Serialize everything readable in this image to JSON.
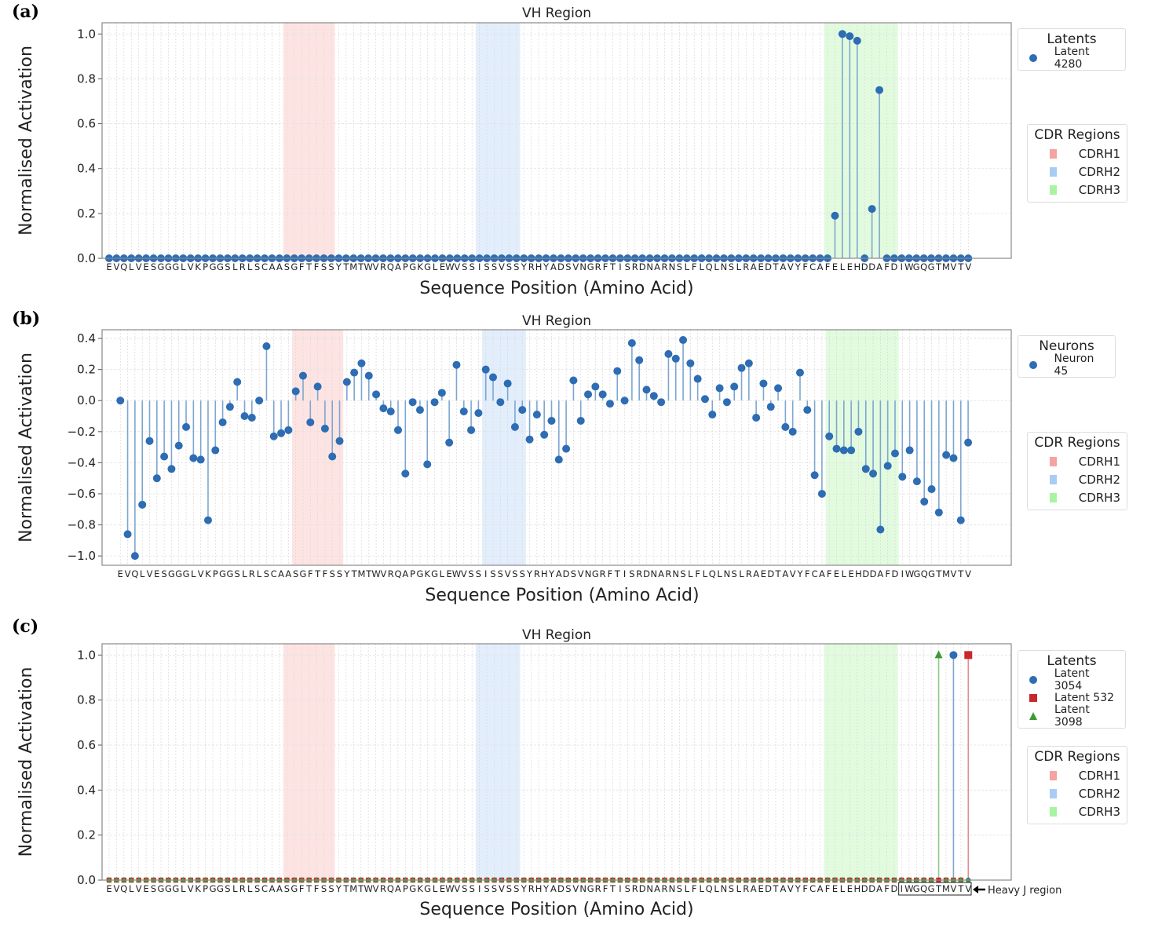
{
  "chart_data": [
    {
      "type": "stem",
      "panel_label": "(a)",
      "title": "VH Region",
      "xlabel": "Sequence Position (Amino Acid)",
      "ylabel": "Normalised Activation",
      "grid": true,
      "categories": [
        "E",
        "V",
        "Q",
        "L",
        "V",
        "E",
        "S",
        "G",
        "G",
        "G",
        "L",
        "V",
        "K",
        "P",
        "G",
        "G",
        "S",
        "L",
        "R",
        "L",
        "S",
        "C",
        "A",
        "A",
        "S",
        "G",
        "F",
        "T",
        "F",
        "S",
        "S",
        "Y",
        "T",
        "M",
        "T",
        "W",
        "V",
        "R",
        "Q",
        "A",
        "P",
        "G",
        "K",
        "G",
        "L",
        "E",
        "W",
        "V",
        "S",
        "S",
        "I",
        "S",
        "S",
        "V",
        "S",
        "S",
        "Y",
        "R",
        "H",
        "Y",
        "A",
        "D",
        "S",
        "V",
        "N",
        "G",
        "R",
        "F",
        "T",
        "I",
        "S",
        "R",
        "D",
        "N",
        "A",
        "R",
        "N",
        "S",
        "L",
        "F",
        "L",
        "Q",
        "L",
        "N",
        "S",
        "L",
        "R",
        "A",
        "E",
        "D",
        "T",
        "A",
        "V",
        "Y",
        "F",
        "C",
        "A",
        "F",
        "E",
        "L",
        "E",
        "H",
        "D",
        "D",
        "A",
        "F",
        "D",
        "I",
        "W",
        "G",
        "Q",
        "G",
        "T",
        "M",
        "V",
        "T",
        "V"
      ],
      "xlim": [
        -0.95,
        121.8
      ],
      "ylim": [
        0,
        1.05
      ],
      "yticks": [
        0,
        0.2,
        0.4,
        0.6,
        0.8,
        1.0
      ],
      "ytick_labels": [
        "0.0",
        "0.2",
        "0.4",
        "0.6",
        "0.8",
        "1.0"
      ],
      "legend_title": "Latents",
      "legend_placement": "right",
      "series": [
        {
          "name": "Latent 4280",
          "color": "#2e6db4",
          "stem_color": "#7ea6d0",
          "marker": "circle",
          "values": [
            0,
            0,
            0,
            0,
            0,
            0,
            0,
            0,
            0,
            0,
            0,
            0,
            0,
            0,
            0,
            0,
            0,
            0,
            0,
            0,
            0,
            0,
            0,
            0,
            0,
            0,
            0,
            0,
            0,
            0,
            0,
            0,
            0,
            0,
            0,
            0,
            0,
            0,
            0,
            0,
            0,
            0,
            0,
            0,
            0,
            0,
            0,
            0,
            0,
            0,
            0,
            0,
            0,
            0,
            0,
            0,
            0,
            0,
            0,
            0,
            0,
            0,
            0,
            0,
            0,
            0,
            0,
            0,
            0,
            0,
            0,
            0,
            0,
            0,
            0,
            0,
            0,
            0,
            0,
            0,
            0,
            0,
            0,
            0,
            0,
            0,
            0,
            0,
            0,
            0,
            0,
            0,
            0,
            0,
            0,
            0,
            0,
            0,
            0.19,
            1.0,
            0.99,
            0.97,
            0.0,
            0.22,
            0.75,
            0,
            0,
            0,
            0,
            0,
            0,
            0,
            0,
            0,
            0,
            0,
            0
          ]
        }
      ],
      "cdr_legend_title": "CDR Regions",
      "cdr_regions": [
        {
          "name": "CDRH1",
          "start": 24,
          "end": 30,
          "color": "#f4a3a0",
          "fill": "#fde4e3"
        },
        {
          "name": "CDRH2",
          "start": 50,
          "end": 55,
          "color": "#a8ccf4",
          "fill": "#e3eefc"
        },
        {
          "name": "CDRH3",
          "start": 97,
          "end": 106,
          "color": "#a8f4a0",
          "fill": "#e2fbdf"
        }
      ]
    },
    {
      "type": "stem",
      "panel_label": "(b)",
      "title": "VH Region",
      "xlabel": "Sequence Position (Amino Acid)",
      "ylabel": "Normalised Activation",
      "grid": true,
      "categories": [
        "E",
        "V",
        "Q",
        "L",
        "V",
        "E",
        "S",
        "G",
        "G",
        "G",
        "L",
        "V",
        "K",
        "P",
        "G",
        "G",
        "S",
        "L",
        "R",
        "L",
        "S",
        "C",
        "A",
        "A",
        "S",
        "G",
        "F",
        "T",
        "F",
        "S",
        "S",
        "Y",
        "T",
        "M",
        "T",
        "W",
        "V",
        "R",
        "Q",
        "A",
        "P",
        "G",
        "K",
        "G",
        "L",
        "E",
        "W",
        "V",
        "S",
        "S",
        "I",
        "S",
        "S",
        "V",
        "S",
        "S",
        "Y",
        "R",
        "H",
        "Y",
        "A",
        "D",
        "S",
        "V",
        "N",
        "G",
        "R",
        "F",
        "T",
        "I",
        "S",
        "R",
        "D",
        "N",
        "A",
        "R",
        "N",
        "S",
        "L",
        "F",
        "L",
        "Q",
        "L",
        "N",
        "S",
        "L",
        "R",
        "A",
        "E",
        "D",
        "T",
        "A",
        "V",
        "Y",
        "F",
        "C",
        "A",
        "F",
        "E",
        "L",
        "E",
        "H",
        "D",
        "D",
        "A",
        "F",
        "D",
        "I",
        "W",
        "G",
        "Q",
        "G",
        "T",
        "M",
        "V",
        "T",
        "V"
      ],
      "xlim": [
        -2.5,
        121.9
      ],
      "ylim": [
        -1.06,
        0.456
      ],
      "yticks": [
        -1.0,
        -0.8,
        -0.6,
        -0.4,
        -0.2,
        0.0,
        0.2,
        0.4
      ],
      "ytick_labels": [
        "−1.0",
        "−0.8",
        "−0.6",
        "−0.4",
        "−0.2",
        "0.0",
        "0.2",
        "0.4"
      ],
      "legend_title": "Neurons",
      "legend_placement": "right",
      "series": [
        {
          "name": "Neuron 45",
          "color": "#2e6db4",
          "stem_color": "#7ea6d0",
          "marker": "circle",
          "values": [
            0,
            -0.86,
            -1.0,
            -0.67,
            -0.26,
            -0.5,
            -0.36,
            -0.44,
            -0.29,
            -0.17,
            -0.37,
            -0.38,
            -0.77,
            -0.32,
            -0.14,
            -0.04,
            0.12,
            -0.1,
            -0.11,
            0.0,
            0.35,
            -0.23,
            -0.21,
            -0.19,
            0.06,
            0.16,
            -0.14,
            0.09,
            -0.18,
            -0.36,
            -0.26,
            0.12,
            0.18,
            0.24,
            0.16,
            0.04,
            -0.05,
            -0.07,
            -0.19,
            -0.47,
            -0.01,
            -0.06,
            -0.41,
            -0.01,
            0.05,
            -0.27,
            0.23,
            -0.07,
            -0.19,
            -0.08,
            0.2,
            0.15,
            -0.01,
            0.11,
            -0.17,
            -0.06,
            -0.25,
            -0.09,
            -0.22,
            -0.13,
            -0.38,
            -0.31,
            0.13,
            -0.13,
            0.04,
            0.09,
            0.04,
            -0.02,
            0.19,
            0.0,
            0.37,
            0.26,
            0.07,
            0.03,
            -0.01,
            0.3,
            0.27,
            0.39,
            0.24,
            0.14,
            0.01,
            -0.09,
            0.08,
            -0.01,
            0.09,
            0.21,
            0.24,
            -0.11,
            0.11,
            -0.04,
            0.08,
            -0.17,
            -0.2,
            0.18,
            -0.06,
            -0.48,
            -0.6,
            -0.23,
            -0.31,
            -0.32,
            -0.32,
            -0.2,
            -0.44,
            -0.47,
            -0.83,
            -0.42,
            -0.34,
            -0.49,
            -0.32,
            -0.52,
            -0.65,
            -0.57,
            -0.72,
            -0.35,
            -0.37,
            -0.77,
            -0.27
          ]
        }
      ],
      "cdr_legend_title": "CDR Regions",
      "cdr_regions": [
        {
          "name": "CDRH1",
          "start": 24,
          "end": 30,
          "color": "#f4a3a0",
          "fill": "#fde4e3"
        },
        {
          "name": "CDRH2",
          "start": 50,
          "end": 55,
          "color": "#a8ccf4",
          "fill": "#e3eefc"
        },
        {
          "name": "CDRH3",
          "start": 97,
          "end": 106,
          "color": "#a8f4a0",
          "fill": "#e2fbdf"
        }
      ]
    },
    {
      "type": "stem",
      "panel_label": "(c)",
      "title": "VH Region",
      "xlabel": "Sequence Position (Amino Acid)",
      "ylabel": "Normalised Activation",
      "grid": true,
      "categories": [
        "E",
        "V",
        "Q",
        "L",
        "V",
        "E",
        "S",
        "G",
        "G",
        "G",
        "L",
        "V",
        "K",
        "P",
        "G",
        "G",
        "S",
        "L",
        "R",
        "L",
        "S",
        "C",
        "A",
        "A",
        "S",
        "G",
        "F",
        "T",
        "F",
        "S",
        "S",
        "Y",
        "T",
        "M",
        "T",
        "W",
        "V",
        "R",
        "Q",
        "A",
        "P",
        "G",
        "K",
        "G",
        "L",
        "E",
        "W",
        "V",
        "S",
        "S",
        "I",
        "S",
        "S",
        "V",
        "S",
        "S",
        "Y",
        "R",
        "H",
        "Y",
        "A",
        "D",
        "S",
        "V",
        "N",
        "G",
        "R",
        "F",
        "T",
        "I",
        "S",
        "R",
        "D",
        "N",
        "A",
        "R",
        "N",
        "S",
        "L",
        "F",
        "L",
        "Q",
        "L",
        "N",
        "S",
        "L",
        "R",
        "A",
        "E",
        "D",
        "T",
        "A",
        "V",
        "Y",
        "F",
        "C",
        "A",
        "F",
        "E",
        "L",
        "E",
        "H",
        "D",
        "D",
        "A",
        "F",
        "D",
        "I",
        "W",
        "G",
        "Q",
        "G",
        "T",
        "M",
        "V",
        "T",
        "V"
      ],
      "xlim": [
        -0.95,
        121.8
      ],
      "ylim": [
        0,
        1.05
      ],
      "yticks": [
        0,
        0.2,
        0.4,
        0.6,
        0.8,
        1.0
      ],
      "ytick_labels": [
        "0.0",
        "0.2",
        "0.4",
        "0.6",
        "0.8",
        "1.0"
      ],
      "legend_title": "Latents",
      "legend_placement": "right",
      "series": [
        {
          "name": "Latent 3054",
          "color": "#2e6db4",
          "stem_color": "#7ea6d0",
          "marker": "circle",
          "values": [
            0,
            0,
            0,
            0,
            0,
            0,
            0,
            0,
            0,
            0,
            0,
            0,
            0,
            0,
            0,
            0,
            0,
            0,
            0,
            0,
            0,
            0,
            0,
            0,
            0,
            0,
            0,
            0,
            0,
            0,
            0,
            0,
            0,
            0,
            0,
            0,
            0,
            0,
            0,
            0,
            0,
            0,
            0,
            0,
            0,
            0,
            0,
            0,
            0,
            0,
            0,
            0,
            0,
            0,
            0,
            0,
            0,
            0,
            0,
            0,
            0,
            0,
            0,
            0,
            0,
            0,
            0,
            0,
            0,
            0,
            0,
            0,
            0,
            0,
            0,
            0,
            0,
            0,
            0,
            0,
            0,
            0,
            0,
            0,
            0,
            0,
            0,
            0,
            0,
            0,
            0,
            0,
            0,
            0,
            0,
            0,
            0,
            0,
            0,
            0,
            0,
            0,
            0,
            0,
            0,
            0,
            0,
            0,
            0,
            0,
            0,
            0,
            0,
            0,
            1.0,
            0,
            0
          ]
        },
        {
          "name": "Latent 532",
          "color": "#c8282a",
          "stem_color": "#e58a8a",
          "marker": "square",
          "values": [
            0,
            0,
            0,
            0,
            0,
            0,
            0,
            0,
            0,
            0,
            0,
            0,
            0,
            0,
            0,
            0,
            0,
            0,
            0,
            0,
            0,
            0,
            0,
            0,
            0,
            0,
            0,
            0,
            0,
            0,
            0,
            0,
            0,
            0,
            0,
            0,
            0,
            0,
            0,
            0,
            0,
            0,
            0,
            0,
            0,
            0,
            0,
            0,
            0,
            0,
            0,
            0,
            0,
            0,
            0,
            0,
            0,
            0,
            0,
            0,
            0,
            0,
            0,
            0,
            0,
            0,
            0,
            0,
            0,
            0,
            0,
            0,
            0,
            0,
            0,
            0,
            0,
            0,
            0,
            0,
            0,
            0,
            0,
            0,
            0,
            0,
            0,
            0,
            0,
            0,
            0,
            0,
            0,
            0,
            0,
            0,
            0,
            0,
            0,
            0,
            0,
            0,
            0,
            0,
            0,
            0,
            0,
            0,
            0,
            0,
            0,
            0,
            0,
            0,
            0,
            0,
            1.0
          ]
        },
        {
          "name": "Latent 3098",
          "color": "#3c9a35",
          "stem_color": "#8ccc85",
          "marker": "triangle",
          "values": [
            0,
            0,
            0,
            0,
            0,
            0,
            0,
            0,
            0,
            0,
            0,
            0,
            0,
            0,
            0,
            0,
            0,
            0,
            0,
            0,
            0,
            0,
            0,
            0,
            0,
            0,
            0,
            0,
            0,
            0,
            0,
            0,
            0,
            0,
            0,
            0,
            0,
            0,
            0,
            0,
            0,
            0,
            0,
            0,
            0,
            0,
            0,
            0,
            0,
            0,
            0,
            0,
            0,
            0,
            0,
            0,
            0,
            0,
            0,
            0,
            0,
            0,
            0,
            0,
            0,
            0,
            0,
            0,
            0,
            0,
            0,
            0,
            0,
            0,
            0,
            0,
            0,
            0,
            0,
            0,
            0,
            0,
            0,
            0,
            0,
            0,
            0,
            0,
            0,
            0,
            0,
            0,
            0,
            0,
            0,
            0,
            0,
            0,
            0,
            0,
            0,
            0,
            0,
            0,
            0,
            0,
            0,
            0,
            0,
            0,
            0,
            0,
            1.0,
            0,
            0,
            0,
            0
          ]
        }
      ],
      "cdr_legend_title": "CDR Regions",
      "cdr_regions": [
        {
          "name": "CDRH1",
          "start": 24,
          "end": 30,
          "color": "#f4a3a0",
          "fill": "#fde4e3"
        },
        {
          "name": "CDRH2",
          "start": 50,
          "end": 55,
          "color": "#a8ccf4",
          "fill": "#e3eefc"
        },
        {
          "name": "CDRH3",
          "start": 97,
          "end": 106,
          "color": "#a8f4a0",
          "fill": "#e2fbdf"
        }
      ],
      "annotation": {
        "text": "Heavy J region",
        "start": 107,
        "end": 116,
        "arrow": "left-arrow"
      }
    }
  ]
}
